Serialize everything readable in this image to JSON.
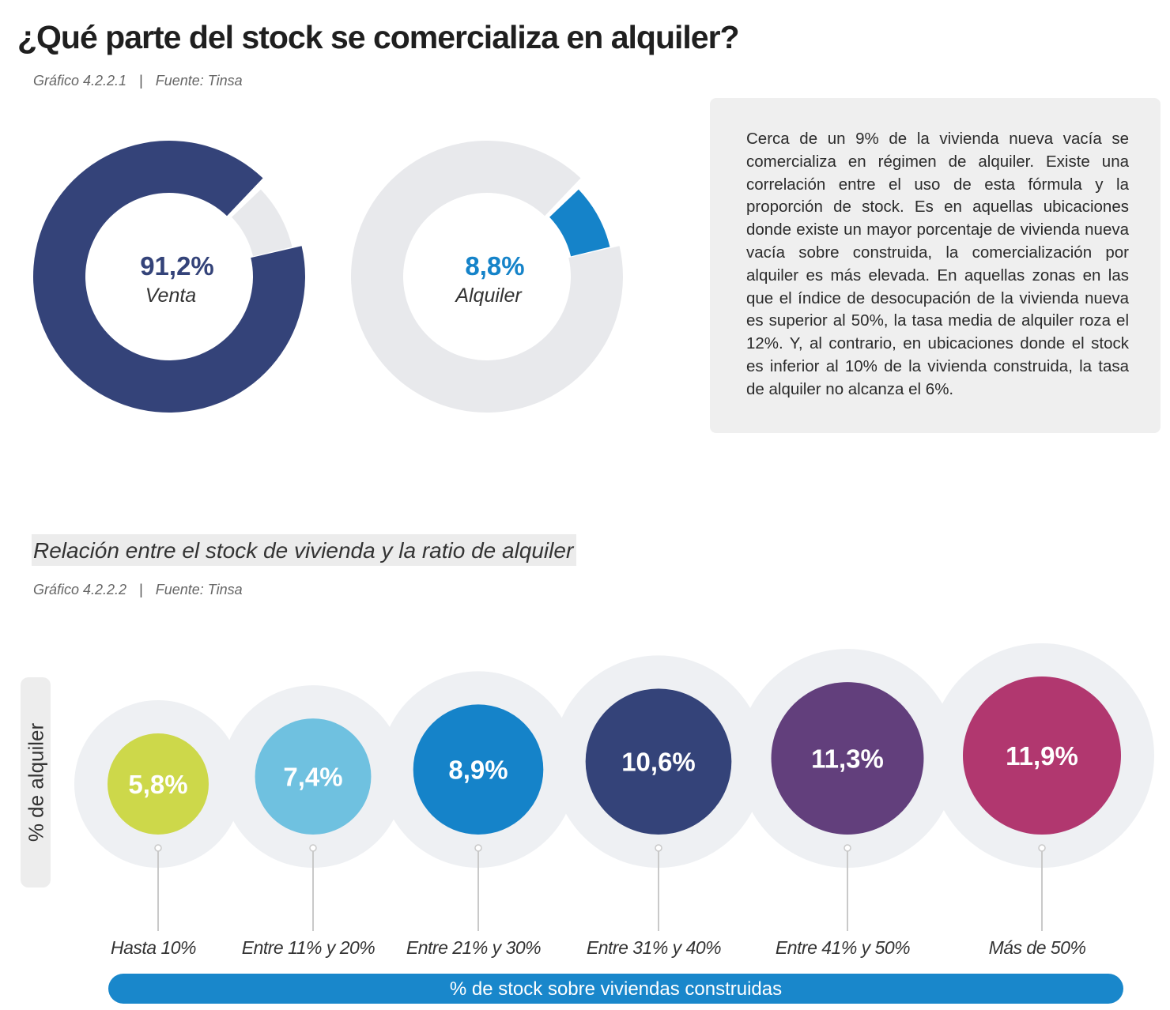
{
  "title": "¿Qué parte del stock se comercializa en alquiler?",
  "chart1": {
    "grafico": "Gráfico 4.2.2.1",
    "fuente": "Fuente: Tinsa"
  },
  "chart2": {
    "subtitle": "Relación entre el stock de vivienda y la ratio de alquiler",
    "grafico": "Gráfico 4.2.2.2",
    "fuente": "Fuente: Tinsa"
  },
  "textbox": "Cerca de un 9% de la vivienda nueva vacía se comercializa en régimen de alquiler. Existe una correlación entre el uso de esta fórmula y la proporción de stock. Es en aquellas ubicaciones donde existe un mayor porcentaje de vivienda nueva vacía sobre construida, la comercialización por alquiler es más elevada. En aquellas zonas en las que el índice de desocupación de la vivienda nueva es superior al 50%, la tasa media de alquiler roza el 12%. Y, al contrario, en ubicaciones donde el stock es inferior al 10% de la vivienda construida, la tasa de alquiler no alcanza el 6%.",
  "chart_data": [
    {
      "type": "pie",
      "slices": [
        {
          "label": "Venta",
          "value": 91.2,
          "value_label": "91,2%",
          "color": "#344379"
        },
        {
          "label": "Alquiler",
          "value": 8.8,
          "value_label": "8,8%",
          "color": "#1583c9"
        }
      ],
      "donuts": [
        {
          "highlight": "Venta",
          "center_value": "91,2%",
          "center_label": "Venta",
          "color": "#344379",
          "value_color": "#344379"
        },
        {
          "highlight": "Alquiler",
          "center_value": "8,8%",
          "center_label": "Alquiler",
          "color": "#1583c9",
          "value_color": "#1583c9"
        }
      ],
      "background_color": "#e8e9ec"
    },
    {
      "type": "scatter",
      "xlabel": "% de stock sobre viviendas construidas",
      "ylabel": "% de alquiler",
      "categories": [
        "Hasta 10%",
        "Entre 11% y 20%",
        "Entre 21% y 30%",
        "Entre 31% y 40%",
        "Entre 41% y 50%",
        "Más de 50%"
      ],
      "values": [
        5.8,
        7.4,
        8.9,
        10.6,
        11.3,
        11.9
      ],
      "value_labels": [
        "5,8%",
        "7,4%",
        "8,9%",
        "10,6%",
        "11,3%",
        "11,9%"
      ],
      "colors": [
        "#cdd84a",
        "#6fc1e0",
        "#1583c9",
        "#344379",
        "#623f7c",
        "#b1376f"
      ]
    }
  ]
}
